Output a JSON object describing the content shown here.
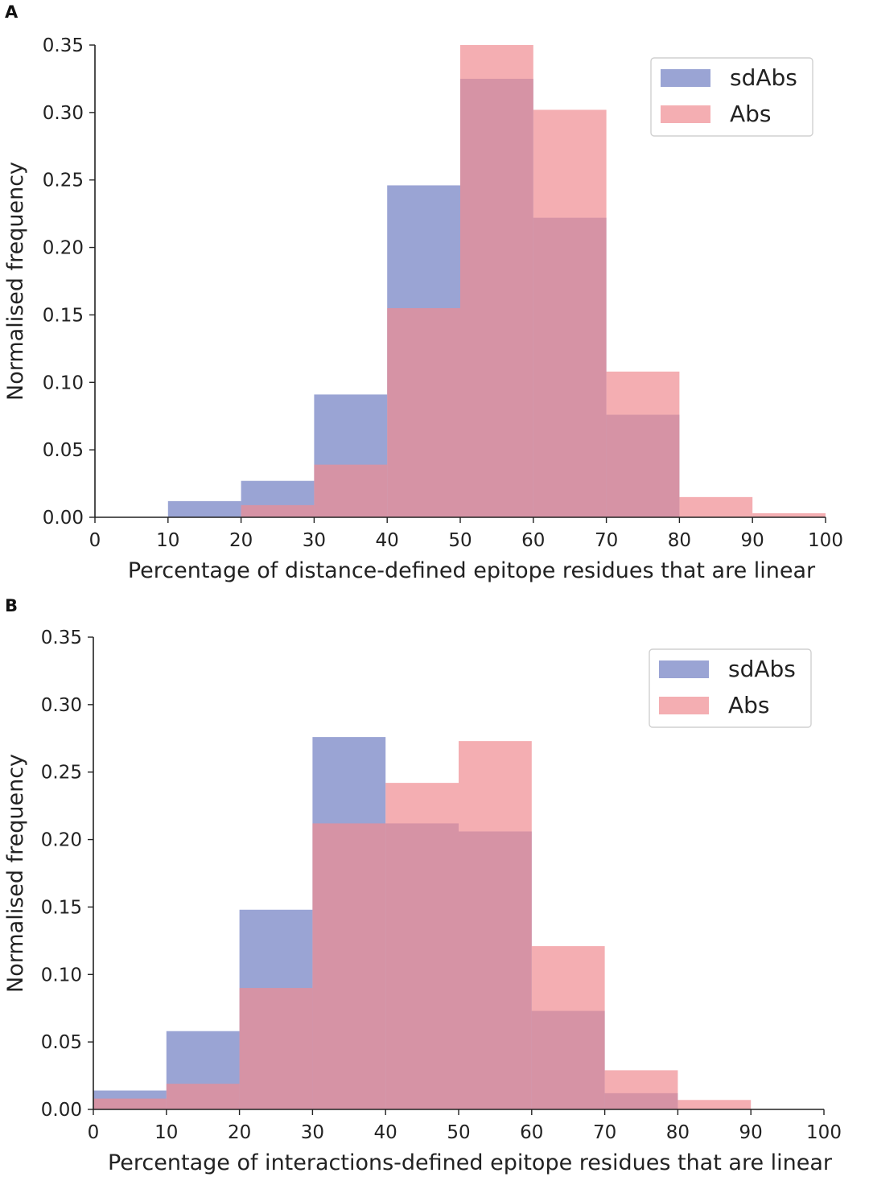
{
  "colors": {
    "sdAbs": "#6f7dc2",
    "Abs": "#f08b92"
  },
  "chart_data": [
    {
      "type": "bar",
      "panel": "A",
      "xlabel": "Percentage of distance-defined epitope residues that are linear",
      "ylabel": "Normalised frequency",
      "xlim": [
        0,
        100
      ],
      "ylim": [
        0,
        0.35
      ],
      "xticks": [
        "0",
        "10",
        "20",
        "30",
        "40",
        "50",
        "60",
        "70",
        "80",
        "90",
        "100"
      ],
      "yticks": [
        "0.00",
        "0.05",
        "0.10",
        "0.15",
        "0.20",
        "0.25",
        "0.30",
        "0.35"
      ],
      "bin_edges": [
        0,
        10,
        20,
        30,
        40,
        50,
        60,
        70,
        80,
        90,
        100
      ],
      "legend_position": "upper-right",
      "series": [
        {
          "name": "sdAbs",
          "values": [
            0.0,
            0.012,
            0.027,
            0.091,
            0.246,
            0.325,
            0.222,
            0.076,
            0.0,
            0.0
          ]
        },
        {
          "name": "Abs",
          "values": [
            0.0,
            0.0,
            0.009,
            0.039,
            0.155,
            0.35,
            0.302,
            0.108,
            0.015,
            0.003
          ]
        }
      ]
    },
    {
      "type": "bar",
      "panel": "B",
      "xlabel": "Percentage of interactions-defined epitope residues that are linear",
      "ylabel": "Normalised frequency",
      "xlim": [
        0,
        100
      ],
      "ylim": [
        0,
        0.35
      ],
      "xticks": [
        "0",
        "10",
        "20",
        "30",
        "40",
        "50",
        "60",
        "70",
        "80",
        "90",
        "100"
      ],
      "yticks": [
        "0.00",
        "0.05",
        "0.10",
        "0.15",
        "0.20",
        "0.25",
        "0.30",
        "0.35"
      ],
      "bin_edges": [
        0,
        10,
        20,
        30,
        40,
        50,
        60,
        70,
        80,
        90,
        100
      ],
      "legend_position": "upper-right",
      "series": [
        {
          "name": "sdAbs",
          "values": [
            0.014,
            0.058,
            0.148,
            0.276,
            0.212,
            0.206,
            0.073,
            0.012,
            0.0,
            0.0
          ]
        },
        {
          "name": "Abs",
          "values": [
            0.008,
            0.019,
            0.09,
            0.212,
            0.242,
            0.273,
            0.121,
            0.029,
            0.007,
            0.0
          ]
        }
      ]
    }
  ]
}
